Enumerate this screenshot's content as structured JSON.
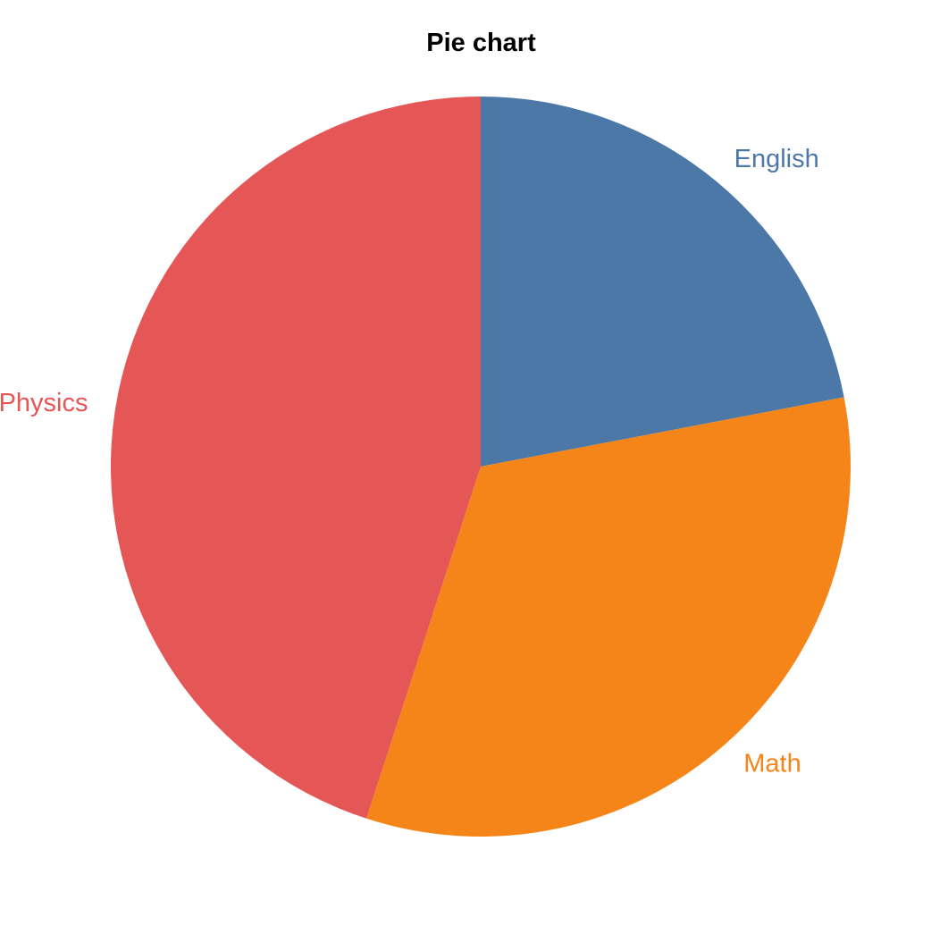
{
  "chart_data": {
    "type": "pie",
    "title": "Pie chart",
    "categories": [
      "English",
      "Math",
      "Physics"
    ],
    "values": [
      22,
      33,
      45
    ],
    "colors": [
      "#4c78a8",
      "#f58518",
      "#e45756"
    ],
    "start_angle_deg": 0,
    "direction": "clockwise",
    "legend": "none"
  }
}
